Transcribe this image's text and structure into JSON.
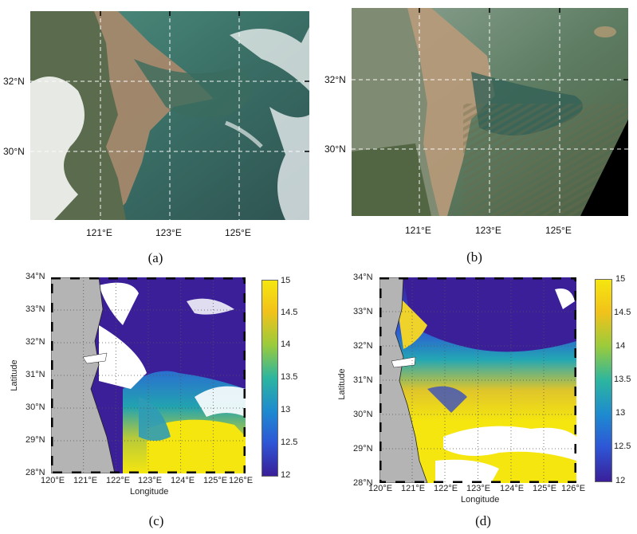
{
  "panels": {
    "a": {
      "caption": "(a)",
      "lat_labels": [
        "32°N",
        "30°N"
      ],
      "lon_labels": [
        "121°E",
        "123°E",
        "125°E"
      ]
    },
    "b": {
      "caption": "(b)",
      "lat_labels": [
        "32°N",
        "30°N"
      ],
      "lon_labels": [
        "121°E",
        "123°E",
        "125°E"
      ]
    },
    "c": {
      "caption": "(c)",
      "xlabel": "Longitude",
      "ylabel": "Latitude",
      "lat_labels": [
        "34°N",
        "33°N",
        "32°N",
        "31°N",
        "30°N",
        "29°N",
        "28°N"
      ],
      "lon_labels": [
        "120°E",
        "121°E",
        "122°E",
        "123°E",
        "124°E",
        "125°E",
        "126°E"
      ],
      "colorbar": {
        "max": "15",
        "t1": "14.5",
        "t2": "14",
        "t3": "13.5",
        "t4": "13",
        "t5": "12.5",
        "min": "12"
      }
    },
    "d": {
      "caption": "(d)",
      "xlabel": "Longitude",
      "ylabel": "Latitude",
      "lat_labels": [
        "34°N",
        "33°N",
        "32°N",
        "31°N",
        "30°N",
        "29°N",
        "28°N"
      ],
      "lon_labels": [
        "120°E",
        "121°E",
        "122°E",
        "123°E",
        "124°E",
        "125°E",
        "126°E"
      ],
      "colorbar": {
        "max": "15",
        "t1": "14.5",
        "t2": "14",
        "t3": "13.5",
        "t4": "13",
        "t5": "12.5",
        "min": "12"
      }
    }
  },
  "colors": {
    "land_gray": "#b4b4b4",
    "low_value": "#3a1f99",
    "high_value": "#f5e60f",
    "sediment": "#a8896b",
    "sea_green": "#3f7a6a"
  }
}
